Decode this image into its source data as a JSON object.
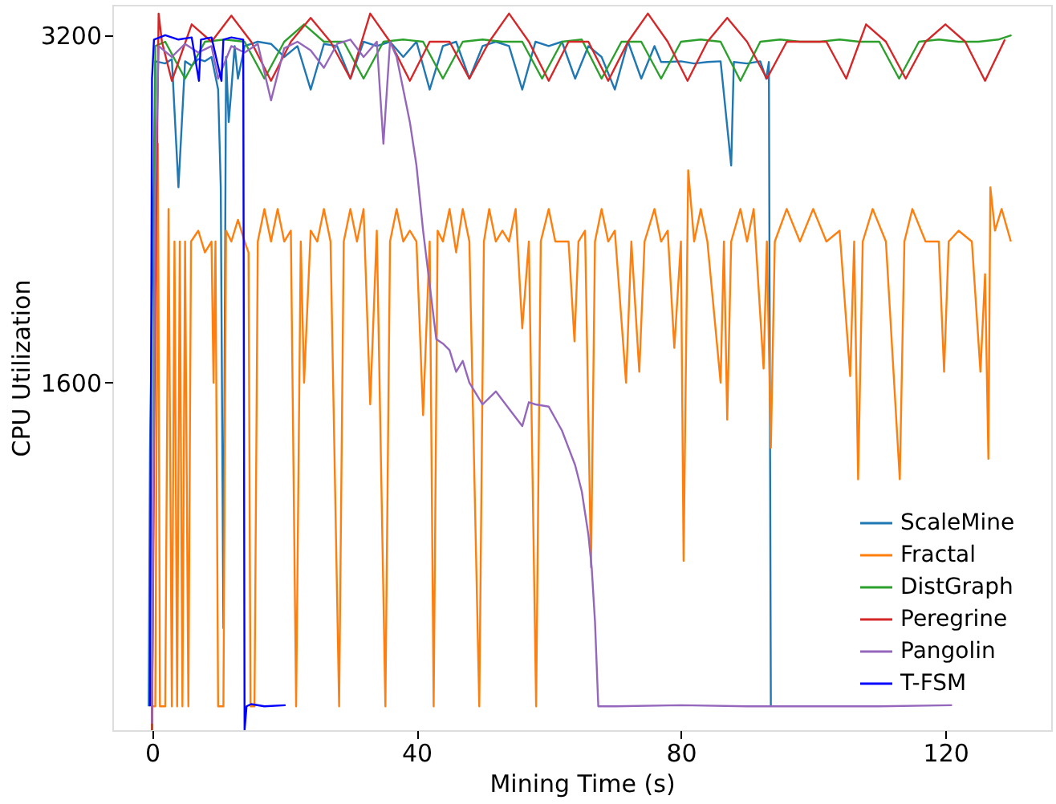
{
  "chart_data": {
    "type": "line",
    "xlabel": "Mining Time (s)",
    "ylabel": "CPU Utilization",
    "xlim": [
      -6,
      136
    ],
    "ylim": [
      0,
      3340
    ],
    "xticks": [
      0,
      40,
      80,
      120
    ],
    "yticks": [
      1600,
      3200
    ],
    "grid": false,
    "legend": "bottom right",
    "series": [
      {
        "name": "ScaleMine",
        "color": "#1f77b4",
        "x": [
          -0.5,
          -0.3,
          0.5,
          2,
          3,
          4,
          5,
          6,
          7,
          8,
          9,
          10,
          10.4,
          10.8,
          11.2,
          11.6,
          12,
          12.5,
          13,
          14,
          16,
          18,
          20,
          22,
          24,
          26,
          28,
          30,
          32,
          34,
          36,
          38,
          40,
          42,
          44,
          46,
          48,
          50,
          52,
          54,
          56,
          58,
          60,
          62,
          64,
          66,
          68,
          70,
          72,
          74,
          76,
          77,
          78,
          80,
          82,
          84,
          86,
          87.6,
          88,
          90,
          92,
          92.9,
          93.3,
          93.6
        ],
        "values": [
          110,
          1300,
          3080,
          3070,
          3090,
          2500,
          3080,
          3060,
          3090,
          3080,
          3100,
          2950,
          2500,
          470,
          3100,
          2800,
          2950,
          3150,
          3000,
          3150,
          3170,
          3160,
          3100,
          3150,
          2950,
          3160,
          3150,
          3000,
          3170,
          3150,
          3170,
          3100,
          3170,
          2950,
          3150,
          3170,
          3000,
          3150,
          3170,
          3150,
          2950,
          3170,
          3150,
          3170,
          3000,
          3150,
          3100,
          2950,
          3170,
          3000,
          3150,
          3077,
          3077,
          3080,
          3070,
          3077,
          3080,
          2600,
          3077,
          3070,
          3080,
          3000,
          3077,
          110
        ]
      },
      {
        "name": "Fractal",
        "color": "#ff7f0e",
        "x": [
          0,
          0.5,
          0.9,
          1.2,
          2,
          2.5,
          3,
          3.4,
          3.8,
          4.2,
          4.6,
          5,
          5.5,
          5.9,
          7,
          8,
          9,
          9.3,
          9.6,
          10,
          10.8,
          11.2,
          12,
          13,
          14,
          14.6,
          14.9,
          15.5,
          16,
          17,
          18,
          19,
          20,
          21,
          21.8,
          22.5,
          23,
          24,
          25,
          26,
          27,
          28.3,
          29,
          30,
          31,
          32,
          33,
          34,
          35.3,
          36,
          37,
          38,
          39,
          40,
          41,
          42,
          42.6,
          43.2,
          44,
          45,
          46,
          47,
          48,
          49.5,
          50.2,
          51,
          52,
          53,
          54,
          55,
          56,
          57,
          58.1,
          58.8,
          60,
          61,
          62,
          63,
          63.9,
          64.5,
          65.5,
          66.4,
          67,
          68,
          69,
          70,
          71.7,
          72.5,
          73.7,
          74.5,
          76,
          77,
          78,
          79,
          80,
          80.4,
          81.1,
          82,
          83,
          84,
          86,
          86.5,
          87,
          87.6,
          89,
          90,
          91,
          92.5,
          93,
          93.6,
          94.2,
          96,
          98,
          100,
          102,
          104,
          105.6,
          106.2,
          106.8,
          107.5,
          109,
          111,
          113.1,
          113.8,
          115,
          117,
          119,
          119.8,
          120.5,
          122,
          124,
          125.3,
          126,
          126.5,
          126.8,
          127.5,
          128.5,
          129.9
        ],
        "values": [
          110,
          110,
          2700,
          110,
          110,
          2400,
          110,
          2250,
          110,
          2250,
          110,
          2250,
          110,
          2250,
          2300,
          2200,
          2250,
          1600,
          2250,
          110,
          110,
          2300,
          2250,
          2350,
          2250,
          2200,
          110,
          110,
          2250,
          2400,
          2250,
          2400,
          2250,
          2300,
          110,
          2250,
          1600,
          2300,
          2250,
          2400,
          2250,
          110,
          2250,
          2400,
          2250,
          2400,
          1500,
          2300,
          110,
          2250,
          2400,
          2250,
          2300,
          2250,
          1450,
          2250,
          110,
          2300,
          2250,
          2400,
          2200,
          2400,
          2250,
          110,
          2250,
          2400,
          2250,
          2300,
          2250,
          2400,
          1850,
          2250,
          110,
          2250,
          2400,
          2250,
          2250,
          2250,
          1790,
          2250,
          2300,
          750,
          2250,
          2400,
          2250,
          2300,
          1600,
          2250,
          1650,
          2250,
          2400,
          2250,
          2300,
          1760,
          2250,
          780,
          2578,
          2250,
          2400,
          2250,
          1600,
          2250,
          1430,
          2250,
          2400,
          2250,
          2400,
          1665,
          2250,
          1300,
          2250,
          2400,
          2250,
          2400,
          2250,
          2300,
          1630,
          2250,
          1155,
          2250,
          2400,
          2250,
          1155,
          2250,
          2400,
          2250,
          2250,
          1650,
          2250,
          2300,
          2250,
          1650,
          2100,
          1250,
          2500,
          2300,
          2400,
          2250
        ]
      },
      {
        "name": "DistGraph",
        "color": "#2ca02c",
        "x": [
          0,
          0.5,
          2,
          5,
          8,
          11,
          14,
          17,
          20,
          23,
          26,
          29,
          32,
          35,
          38,
          41,
          44,
          47,
          50,
          53,
          56,
          59,
          62,
          65,
          68,
          71,
          74,
          77,
          80,
          83,
          86,
          89,
          92,
          95,
          98,
          101,
          104,
          107,
          110,
          113,
          116,
          119,
          122,
          125,
          128,
          130
        ],
        "values": [
          0,
          3150,
          3170,
          3000,
          3170,
          3180,
          3170,
          3000,
          3170,
          3250,
          3170,
          3170,
          3000,
          3170,
          3180,
          3170,
          3000,
          3170,
          3180,
          3170,
          3170,
          3000,
          3170,
          3180,
          3000,
          3170,
          3170,
          3000,
          3170,
          3180,
          3170,
          2990,
          3170,
          3180,
          3170,
          3170,
          3180,
          3170,
          3170,
          3000,
          3170,
          3180,
          3170,
          3170,
          3180,
          3200
        ]
      },
      {
        "name": "Peregrine",
        "color": "#d62728",
        "x": [
          0,
          0.5,
          1,
          1.5,
          3,
          6,
          9,
          12,
          15,
          18,
          21,
          24,
          27,
          30,
          33,
          36,
          39,
          42,
          45,
          48,
          51,
          54,
          57,
          60,
          63,
          66,
          69,
          72,
          75,
          78,
          81,
          84,
          87,
          90,
          93,
          96,
          99,
          102,
          105,
          108,
          111,
          114,
          117,
          120,
          123,
          126,
          129
        ],
        "values": [
          0,
          2000,
          3300,
          3170,
          2990,
          3250,
          3170,
          3290,
          3170,
          2990,
          3170,
          3280,
          3170,
          3000,
          3300,
          3170,
          2990,
          3170,
          3170,
          3000,
          3170,
          3300,
          3170,
          2990,
          3170,
          3170,
          2990,
          3170,
          3300,
          3170,
          2990,
          3170,
          3280,
          3170,
          3000,
          3170,
          3170,
          3170,
          3000,
          3250,
          3170,
          3000,
          3170,
          3250,
          3170,
          2990,
          3180
        ]
      },
      {
        "name": "Pangolin",
        "color": "#9467bd",
        "x": [
          0,
          0.5,
          1,
          3,
          5,
          7,
          9,
          10,
          12,
          14,
          16,
          18,
          20,
          22,
          24,
          26,
          28,
          30,
          32,
          34,
          35,
          36,
          37,
          38,
          39,
          40,
          41,
          42,
          43,
          44,
          45,
          46,
          47,
          48,
          50,
          52,
          54,
          56,
          57,
          58,
          60,
          62,
          63,
          64,
          65,
          66,
          66.5,
          67,
          67.5,
          70,
          80,
          90,
          100,
          110,
          121
        ],
        "values": [
          30,
          2500,
          3150,
          3100,
          3160,
          3120,
          3150,
          3000,
          3150,
          3120,
          3160,
          2900,
          3140,
          3170,
          3130,
          3050,
          3160,
          3180,
          3100,
          3170,
          2700,
          3170,
          3100,
          2950,
          2800,
          2600,
          2300,
          2050,
          1800,
          1780,
          1750,
          1650,
          1700,
          1600,
          1500,
          1560,
          1480,
          1400,
          1510,
          1500,
          1490,
          1380,
          1300,
          1220,
          1100,
          900,
          750,
          500,
          110,
          110,
          115,
          110,
          110,
          110,
          115
        ]
      },
      {
        "name": "T-FSM",
        "color": "#0000ff",
        "x": [
          -0.3,
          0,
          0.3,
          2,
          4,
          6,
          7.1,
          7.4,
          9,
          10.5,
          10.8,
          12,
          13.8,
          14,
          14.3,
          15,
          17,
          20.2
        ],
        "values": [
          110,
          3000,
          3180,
          3200,
          3180,
          3190,
          2990,
          3180,
          3190,
          2990,
          3180,
          3190,
          3180,
          0,
          110,
          120,
          110,
          115
        ]
      }
    ]
  }
}
